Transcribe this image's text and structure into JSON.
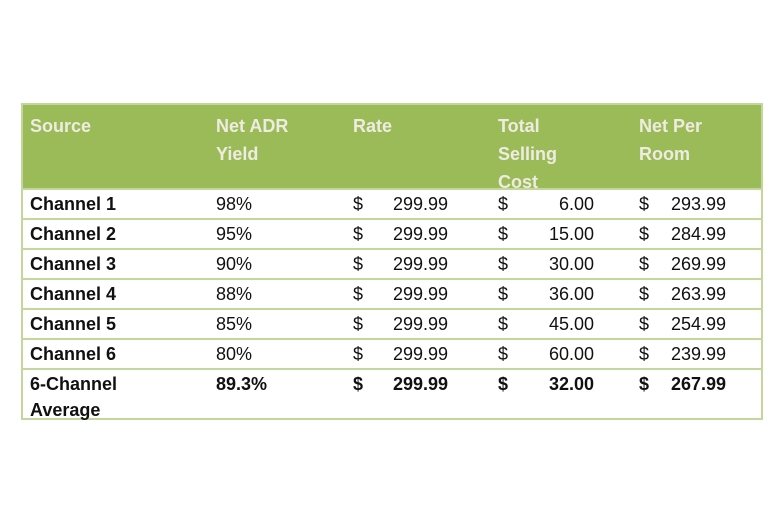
{
  "page": {
    "background": "#FFFFFF"
  },
  "table": {
    "style": {
      "header_bg": "#9BBB59",
      "header_text_color": "#EEECE1",
      "border_color": "#C3D69B",
      "body_text_color": "#111111"
    },
    "columns": [
      {
        "label": "Source"
      },
      {
        "label": "Net ADR Yield"
      },
      {
        "label": "Rate"
      },
      {
        "label": "Total Selling Cost"
      },
      {
        "label": "Net Per Room"
      }
    ],
    "rows": [
      {
        "source": "Channel 1",
        "net_adr_yield": "98%",
        "rate": {
          "currency": "$",
          "amount": "299.99"
        },
        "total_selling_cost": {
          "currency": "$",
          "amount": "6.00"
        },
        "net_per_room": {
          "currency": "$",
          "amount": "293.99"
        },
        "is_average": false
      },
      {
        "source": "Channel 2",
        "net_adr_yield": "95%",
        "rate": {
          "currency": "$",
          "amount": "299.99"
        },
        "total_selling_cost": {
          "currency": "$",
          "amount": "15.00"
        },
        "net_per_room": {
          "currency": "$",
          "amount": "284.99"
        },
        "is_average": false
      },
      {
        "source": "Channel 3",
        "net_adr_yield": "90%",
        "rate": {
          "currency": "$",
          "amount": "299.99"
        },
        "total_selling_cost": {
          "currency": "$",
          "amount": "30.00"
        },
        "net_per_room": {
          "currency": "$",
          "amount": "269.99"
        },
        "is_average": false
      },
      {
        "source": "Channel 4",
        "net_adr_yield": "88%",
        "rate": {
          "currency": "$",
          "amount": "299.99"
        },
        "total_selling_cost": {
          "currency": "$",
          "amount": "36.00"
        },
        "net_per_room": {
          "currency": "$",
          "amount": "263.99"
        },
        "is_average": false
      },
      {
        "source": "Channel 5",
        "net_adr_yield": "85%",
        "rate": {
          "currency": "$",
          "amount": "299.99"
        },
        "total_selling_cost": {
          "currency": "$",
          "amount": "45.00"
        },
        "net_per_room": {
          "currency": "$",
          "amount": "254.99"
        },
        "is_average": false
      },
      {
        "source": "Channel 6",
        "net_adr_yield": "80%",
        "rate": {
          "currency": "$",
          "amount": "299.99"
        },
        "total_selling_cost": {
          "currency": "$",
          "amount": "60.00"
        },
        "net_per_room": {
          "currency": "$",
          "amount": "239.99"
        },
        "is_average": false
      },
      {
        "source": "6-Channel Average",
        "net_adr_yield": "89.3%",
        "rate": {
          "currency": "$",
          "amount": "299.99"
        },
        "total_selling_cost": {
          "currency": "$",
          "amount": "32.00"
        },
        "net_per_room": {
          "currency": "$",
          "amount": "267.99"
        },
        "is_average": true
      }
    ]
  }
}
